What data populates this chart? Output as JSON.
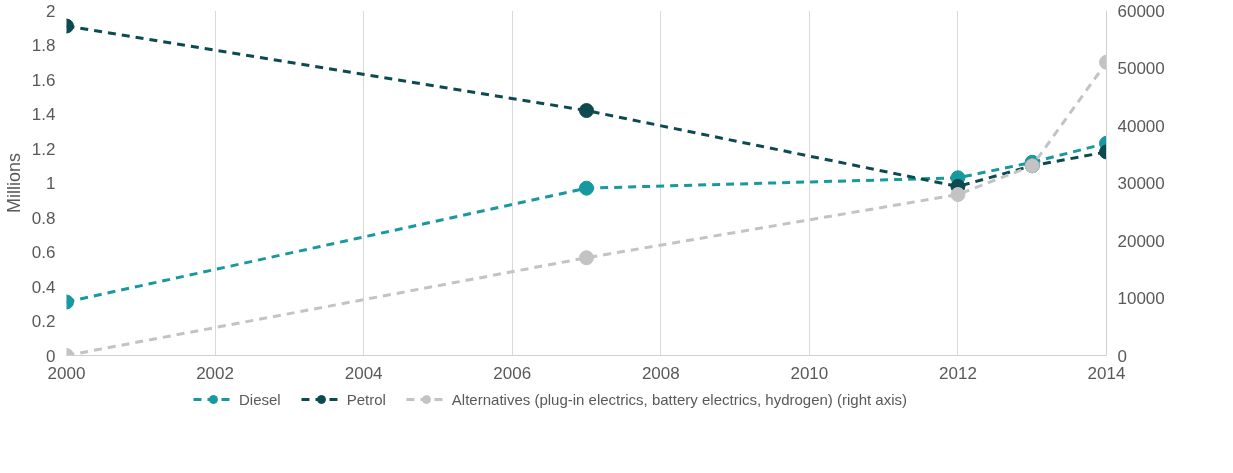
{
  "chart_data": {
    "type": "line",
    "ylabel": "Millions",
    "x": [
      2000,
      2007,
      2012,
      2013,
      2014
    ],
    "series": [
      {
        "name": "Diesel",
        "color": "#17999f",
        "values": [
          0.31,
          0.97,
          1.03,
          1.12,
          1.23
        ]
      },
      {
        "name": "Petrol",
        "color": "#0d4a50",
        "values": [
          1.91,
          1.42,
          0.98,
          1.1,
          1.18
        ]
      },
      {
        "name": "Alternatives (plug-in electrics, battery electrics, hydrogen) (right axis)",
        "color": "#c3c3c3",
        "axis": "y2",
        "values": [
          0,
          17000,
          28000,
          33000,
          51000
        ]
      }
    ],
    "xlim": [
      2000,
      2014
    ],
    "xticks": [
      2000,
      2002,
      2004,
      2006,
      2008,
      2010,
      2012,
      2014
    ],
    "ylim": [
      0,
      2
    ],
    "yticks": [
      0,
      0.2,
      0.4,
      0.6,
      0.8,
      1,
      1.2,
      1.4,
      1.6,
      1.8,
      2
    ],
    "y2lim": [
      0,
      60000
    ],
    "y2ticks": [
      0,
      10000,
      20000,
      30000,
      40000,
      50000,
      60000
    ],
    "grid": "x",
    "legend": "bottom",
    "marker": "circle",
    "line_style": "dashed"
  }
}
